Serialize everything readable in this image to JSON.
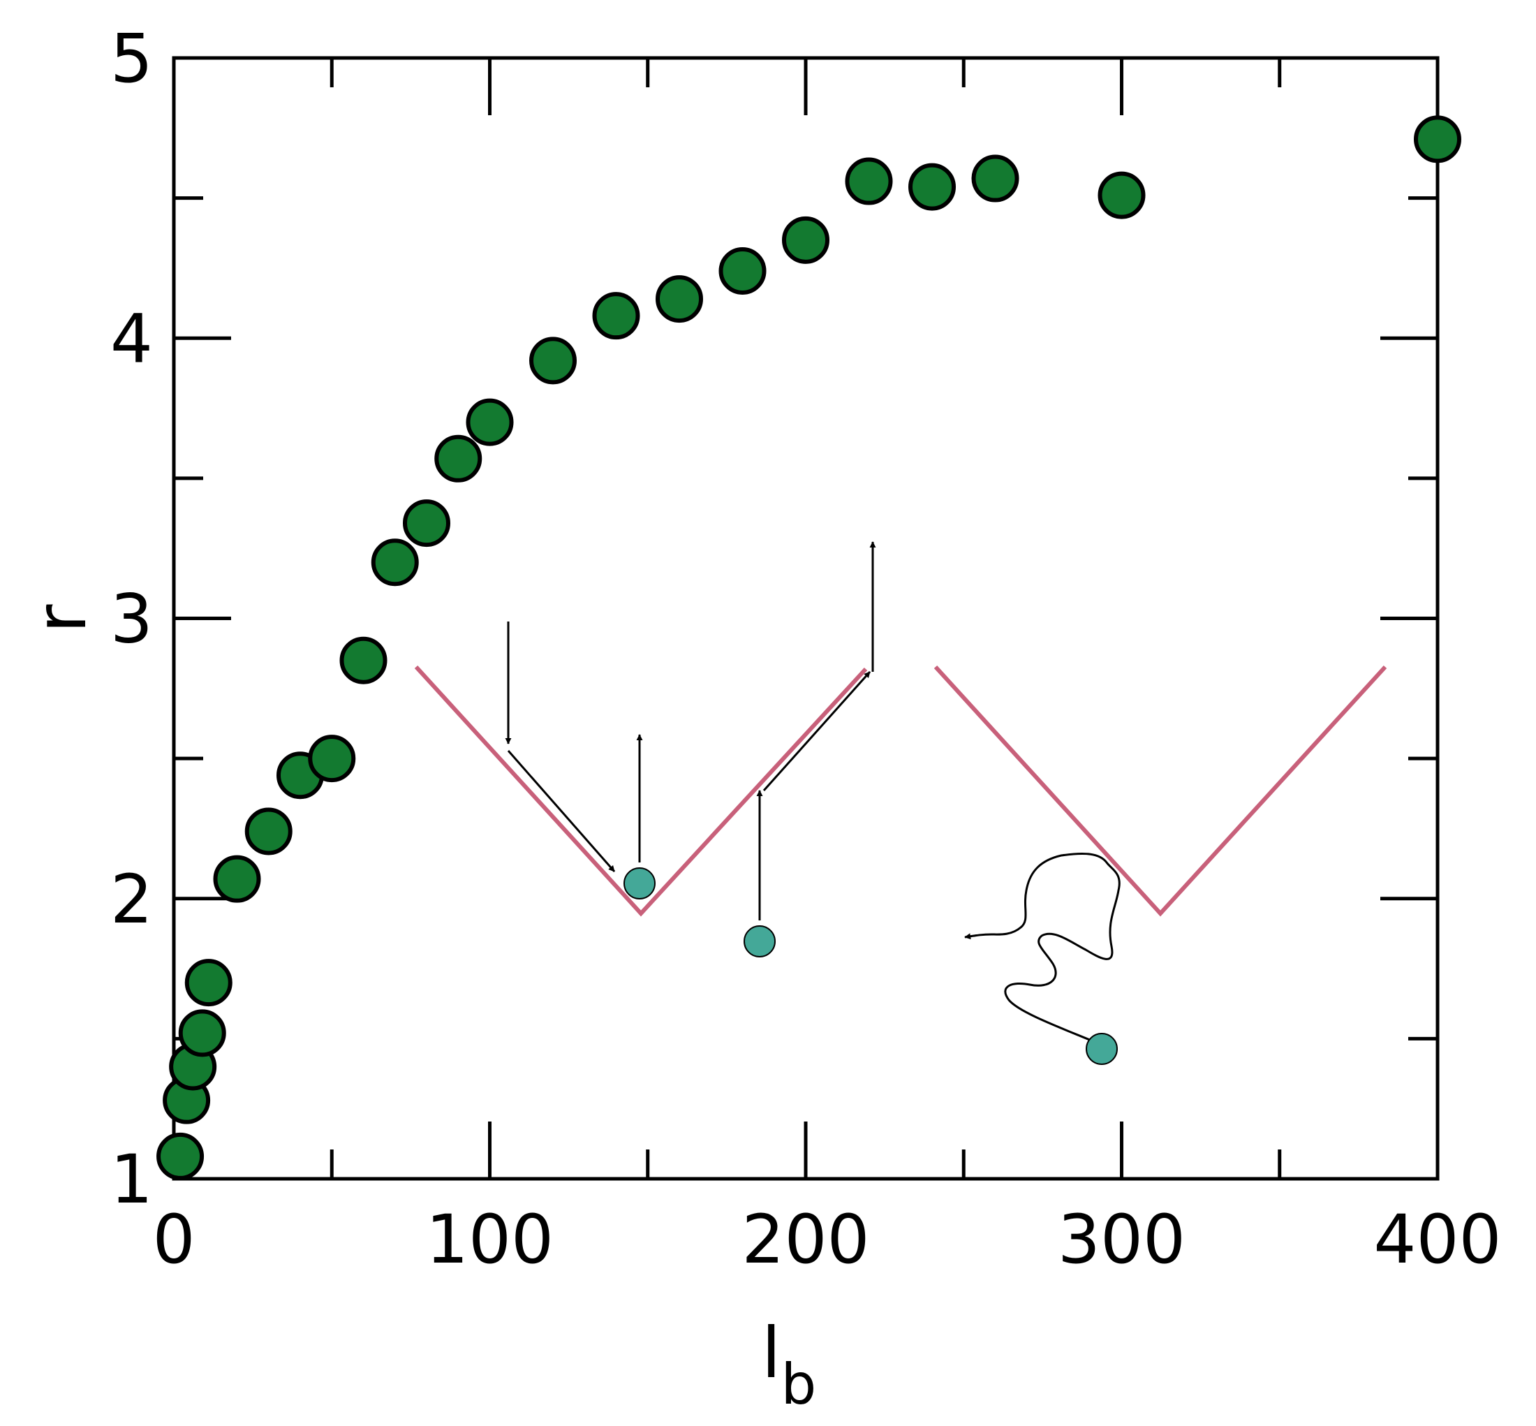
{
  "chart_data": {
    "type": "scatter",
    "xlabel": "l",
    "xlabel_subscript": "b",
    "ylabel": "r",
    "xlim": [
      0,
      400
    ],
    "ylim": [
      1,
      5
    ],
    "x_ticks": [
      0,
      100,
      200,
      300,
      400
    ],
    "y_ticks": [
      1,
      2,
      3,
      4,
      5
    ],
    "x_minor_ticks": [
      50,
      150,
      250,
      350
    ],
    "y_minor_ticks": [
      1.5,
      2.5,
      3.5,
      4.5
    ],
    "grid": false,
    "legend": "none",
    "series": [
      {
        "color": "#137a30",
        "points": [
          [
            2,
            1.08
          ],
          [
            4,
            1.28
          ],
          [
            6,
            1.4
          ],
          [
            9,
            1.52
          ],
          [
            11,
            1.7
          ],
          [
            20,
            2.07
          ],
          [
            30,
            2.24
          ],
          [
            40,
            2.44
          ],
          [
            50,
            2.5
          ],
          [
            60,
            2.85
          ],
          [
            70,
            3.2
          ],
          [
            80,
            3.34
          ],
          [
            90,
            3.57
          ],
          [
            100,
            3.7
          ],
          [
            120,
            3.92
          ],
          [
            140,
            4.08
          ],
          [
            160,
            4.14
          ],
          [
            180,
            4.24
          ],
          [
            200,
            4.35
          ],
          [
            220,
            4.56
          ],
          [
            240,
            4.54
          ],
          [
            260,
            4.57
          ],
          [
            300,
            4.51
          ],
          [
            400,
            4.71
          ]
        ]
      }
    ],
    "annotation_colors": {
      "v_line": "#c8607a",
      "particle": "#44a898",
      "arrow": "#000000"
    }
  }
}
